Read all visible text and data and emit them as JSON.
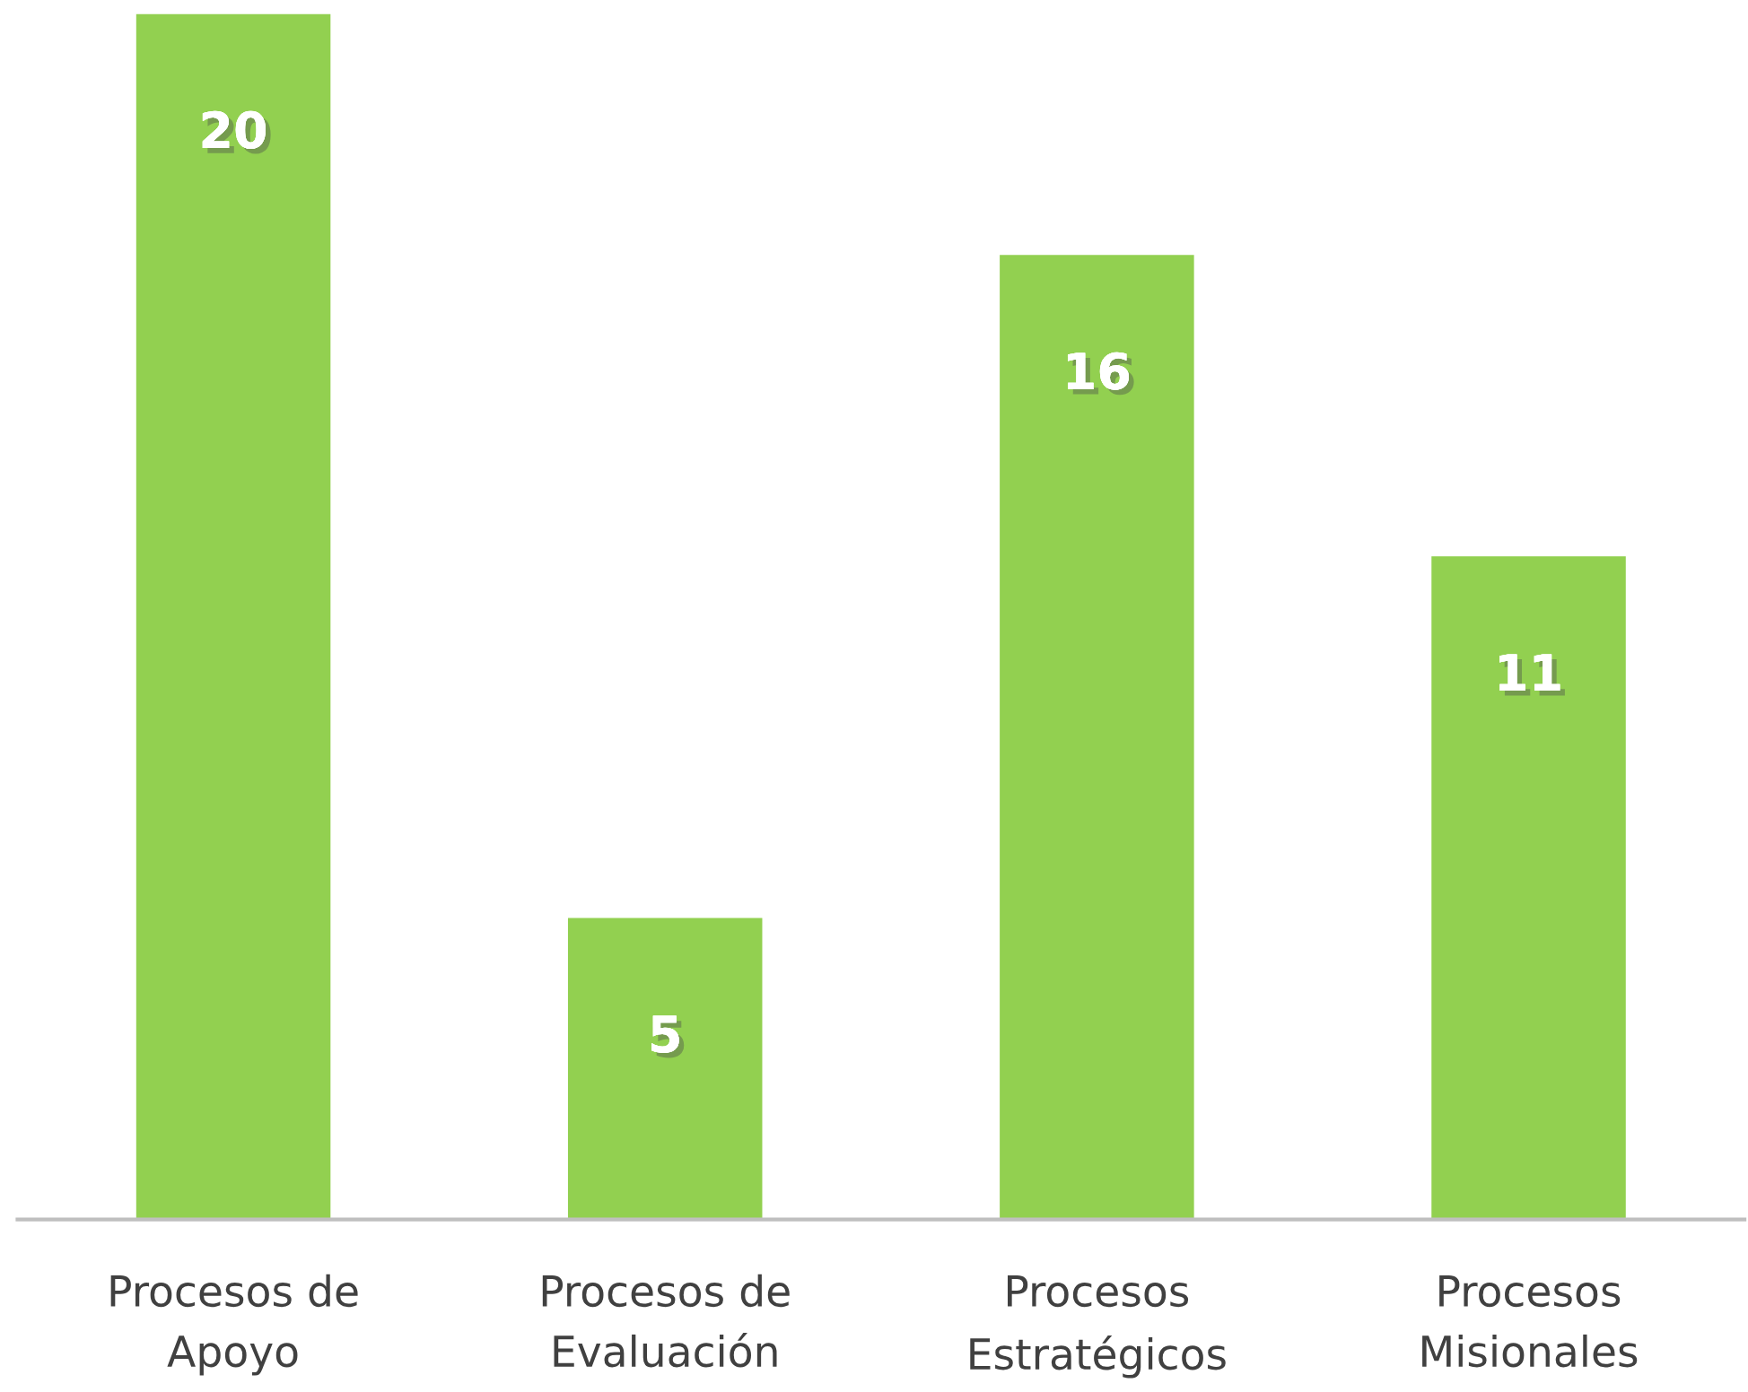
{
  "chart_data": {
    "type": "bar",
    "categories": [
      "Procesos de\nApoyo",
      "Procesos de\nEvaluación",
      "Procesos\nEstratégicos",
      "Procesos\nMisionales"
    ],
    "values": [
      20,
      5,
      16,
      11
    ],
    "color": "#92d050",
    "ylim": [
      0,
      20
    ],
    "data_labels": true,
    "grid": false,
    "legend": false,
    "tick_labels": "x"
  }
}
